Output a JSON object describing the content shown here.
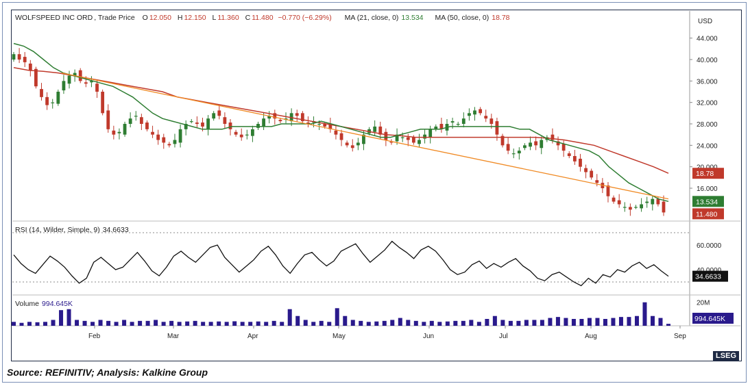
{
  "header": {
    "symbol": "WOLFSPEED INC ORD",
    "price_type": ", Trade Price",
    "o_label": "O",
    "o_value": "12.050",
    "h_label": "H",
    "h_value": "12.150",
    "l_label": "L",
    "l_value": "11.360",
    "c_label": "C",
    "c_value": "11.480",
    "change": "−0.770 (−6.29%)",
    "ma21_label": "MA (21, close, 0)",
    "ma21_value": "13.534",
    "ma50_label": "MA (50, close, 0)",
    "ma50_value": "18.78"
  },
  "rsi_header": {
    "label": "RSI (14, Wilder, Simple, 9)",
    "value": "34.6633"
  },
  "volume_header": {
    "label": "Volume",
    "value": "994.645K"
  },
  "currency": "USD",
  "price_axis": {
    "ticks": [
      "44.000",
      "40.000",
      "36.000",
      "32.000",
      "28.000",
      "24.000",
      "20.000",
      "16.000"
    ],
    "tick_values": [
      44,
      40,
      36,
      32,
      28,
      24,
      20,
      16
    ]
  },
  "rsi_axis": {
    "ticks": [
      "60.0000",
      "40.0000"
    ],
    "tick_values": [
      60,
      40
    ]
  },
  "volume_axis": {
    "ticks": [
      "20M"
    ]
  },
  "tags": {
    "ma50": "18.78",
    "ma21": "13.534",
    "last": "11.480",
    "rsi": "34.6633",
    "volume": "994.645K"
  },
  "x_axis": {
    "labels": [
      "Feb",
      "Mar",
      "Apr",
      "May",
      "Jun",
      "Jul",
      "Aug",
      "Sep"
    ]
  },
  "colors": {
    "up": "#2e7d32",
    "down": "#c0392b",
    "ma21": "#2e7d32",
    "ma50": "#c0392b",
    "trend": "#f08a24",
    "rsi": "#111111",
    "volume": "#2a1a8c"
  },
  "logo": "LSEG",
  "source": "Source: REFINITIV; Analysis: Kalkine Group",
  "chart_data": {
    "type": "candlestick",
    "title": "WOLFSPEED INC ORD, Trade Price",
    "y_unit": "USD",
    "ylim": [
      10,
      46
    ],
    "closes": [
      41,
      40,
      39.5,
      38,
      35,
      33,
      31.5,
      32,
      34,
      36,
      37,
      37.5,
      36,
      35.5,
      36,
      34,
      30,
      27,
      26,
      26.5,
      28,
      29,
      29.5,
      28,
      27,
      26,
      25,
      24.5,
      24,
      25,
      27,
      28,
      28.5,
      28,
      27.5,
      29,
      30,
      29.5,
      28,
      27,
      26,
      25.5,
      26,
      27,
      28,
      29,
      29.5,
      29,
      28.5,
      29,
      30,
      29.5,
      28.5,
      28,
      28.5,
      28,
      27.5,
      27,
      26,
      25,
      24,
      23.5,
      24.5,
      26,
      27,
      27.5,
      26,
      25,
      24.5,
      26,
      25.5,
      25,
      24.5,
      25,
      26,
      27,
      27.5,
      27,
      28,
      28.5,
      28,
      29,
      30,
      30.5,
      30,
      29,
      28,
      26,
      24,
      23,
      22.5,
      23,
      24,
      24.5,
      24,
      25,
      25.5,
      25,
      24,
      23,
      22,
      21,
      20,
      19,
      18,
      17,
      16,
      14.5,
      13.5,
      13,
      12.5,
      12,
      12.5,
      13,
      13.5,
      14,
      13,
      11.48
    ],
    "ma21": [
      43,
      42.5,
      41.5,
      40,
      38.5,
      37.5,
      37,
      36.5,
      36,
      35.5,
      35,
      34,
      33,
      31.5,
      30,
      29,
      28.5,
      28,
      27.5,
      27,
      27,
      27,
      27.5,
      27.5,
      27.5,
      27.5,
      27.5,
      28,
      28,
      28,
      28,
      28.5,
      28,
      27.5,
      27,
      26.5,
      26,
      25.5,
      25.5,
      26,
      26.5,
      27,
      27,
      27,
      27.5,
      27.5,
      27.5,
      27.5,
      27.5,
      27.5,
      27.5,
      27,
      27,
      26,
      25,
      24.5,
      24,
      23.5,
      23,
      22,
      20,
      18.5,
      17,
      16,
      15,
      14,
      13.534
    ],
    "ma50": [
      38.5,
      38,
      37.8,
      37.5,
      37,
      36.5,
      36,
      35.5,
      35,
      34.5,
      34,
      33,
      32.5,
      32,
      31.5,
      31,
      30.5,
      30,
      29.5,
      29,
      28.5,
      28,
      27.5,
      27,
      26.5,
      26,
      25.8,
      25.5,
      25.5,
      25.5,
      25.5,
      25.5,
      25.5,
      25.5,
      25.5,
      25.5,
      25.3,
      25,
      24.5,
      24,
      23,
      22,
      21,
      20,
      18.78
    ],
    "rsi": [
      52,
      45,
      40,
      37,
      44,
      51,
      47,
      42,
      35,
      29,
      33,
      46,
      50,
      45,
      40,
      42,
      48,
      54,
      47,
      39,
      35,
      42,
      51,
      55,
      50,
      46,
      52,
      58,
      60,
      50,
      44,
      38,
      43,
      48,
      55,
      59,
      52,
      43,
      37,
      45,
      52,
      54,
      48,
      43,
      47,
      55,
      58,
      61,
      53,
      46,
      51,
      56,
      63,
      58,
      54,
      49,
      56,
      59,
      55,
      48,
      40,
      36,
      38,
      44,
      47,
      41,
      45,
      42,
      46,
      49,
      43,
      39,
      33,
      31,
      36,
      38,
      34,
      30,
      27,
      33,
      29,
      36,
      34,
      40,
      38,
      43,
      46,
      41,
      44,
      39,
      34.6633
    ],
    "volume_millions": [
      2,
      1.5,
      2,
      1.8,
      2,
      3,
      8,
      8.5,
      3,
      2.5,
      2,
      3,
      2.5,
      2,
      3,
      2,
      2.5,
      2.5,
      3,
      2,
      2.5,
      2,
      2.2,
      2.5,
      2,
      2,
      2.2,
      2,
      2.3,
      2,
      2,
      2.2,
      2,
      2.5,
      2,
      8.5,
      5,
      3,
      2,
      2.5,
      2,
      9,
      5,
      3,
      2.5,
      2,
      2.2,
      2.5,
      3,
      4,
      3,
      2.5,
      2,
      2.5,
      2,
      2.2,
      2.5,
      2.5,
      3,
      2,
      3.5,
      5,
      3,
      2.5,
      2.5,
      3,
      3,
      3,
      4,
      4.5,
      4,
      3.5,
      3.5,
      4,
      4,
      3.5,
      4,
      4.5,
      4.5,
      5,
      12,
      5,
      4,
      0.99
    ]
  }
}
